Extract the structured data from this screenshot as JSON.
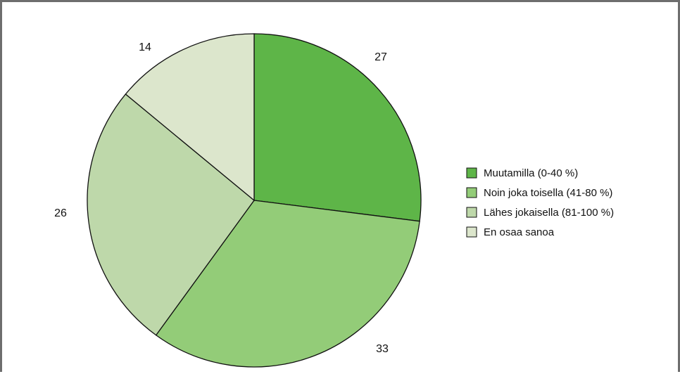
{
  "chart_data": {
    "type": "pie",
    "title": "",
    "categories": [
      "Muutamilla (0-40 %)",
      "Noin joka toisella (41-80 %)",
      "Lähes jokaisella (81-100 %)",
      "En osaa sanoa"
    ],
    "values": [
      27,
      33,
      26,
      14
    ],
    "value_labels": [
      "27",
      "33",
      "26",
      "14"
    ],
    "colors": [
      "#5eb548",
      "#93cc78",
      "#bed8aa",
      "#dce6cc"
    ],
    "legend_position": "right",
    "start_angle": "12 o'clock",
    "direction": "clockwise"
  }
}
